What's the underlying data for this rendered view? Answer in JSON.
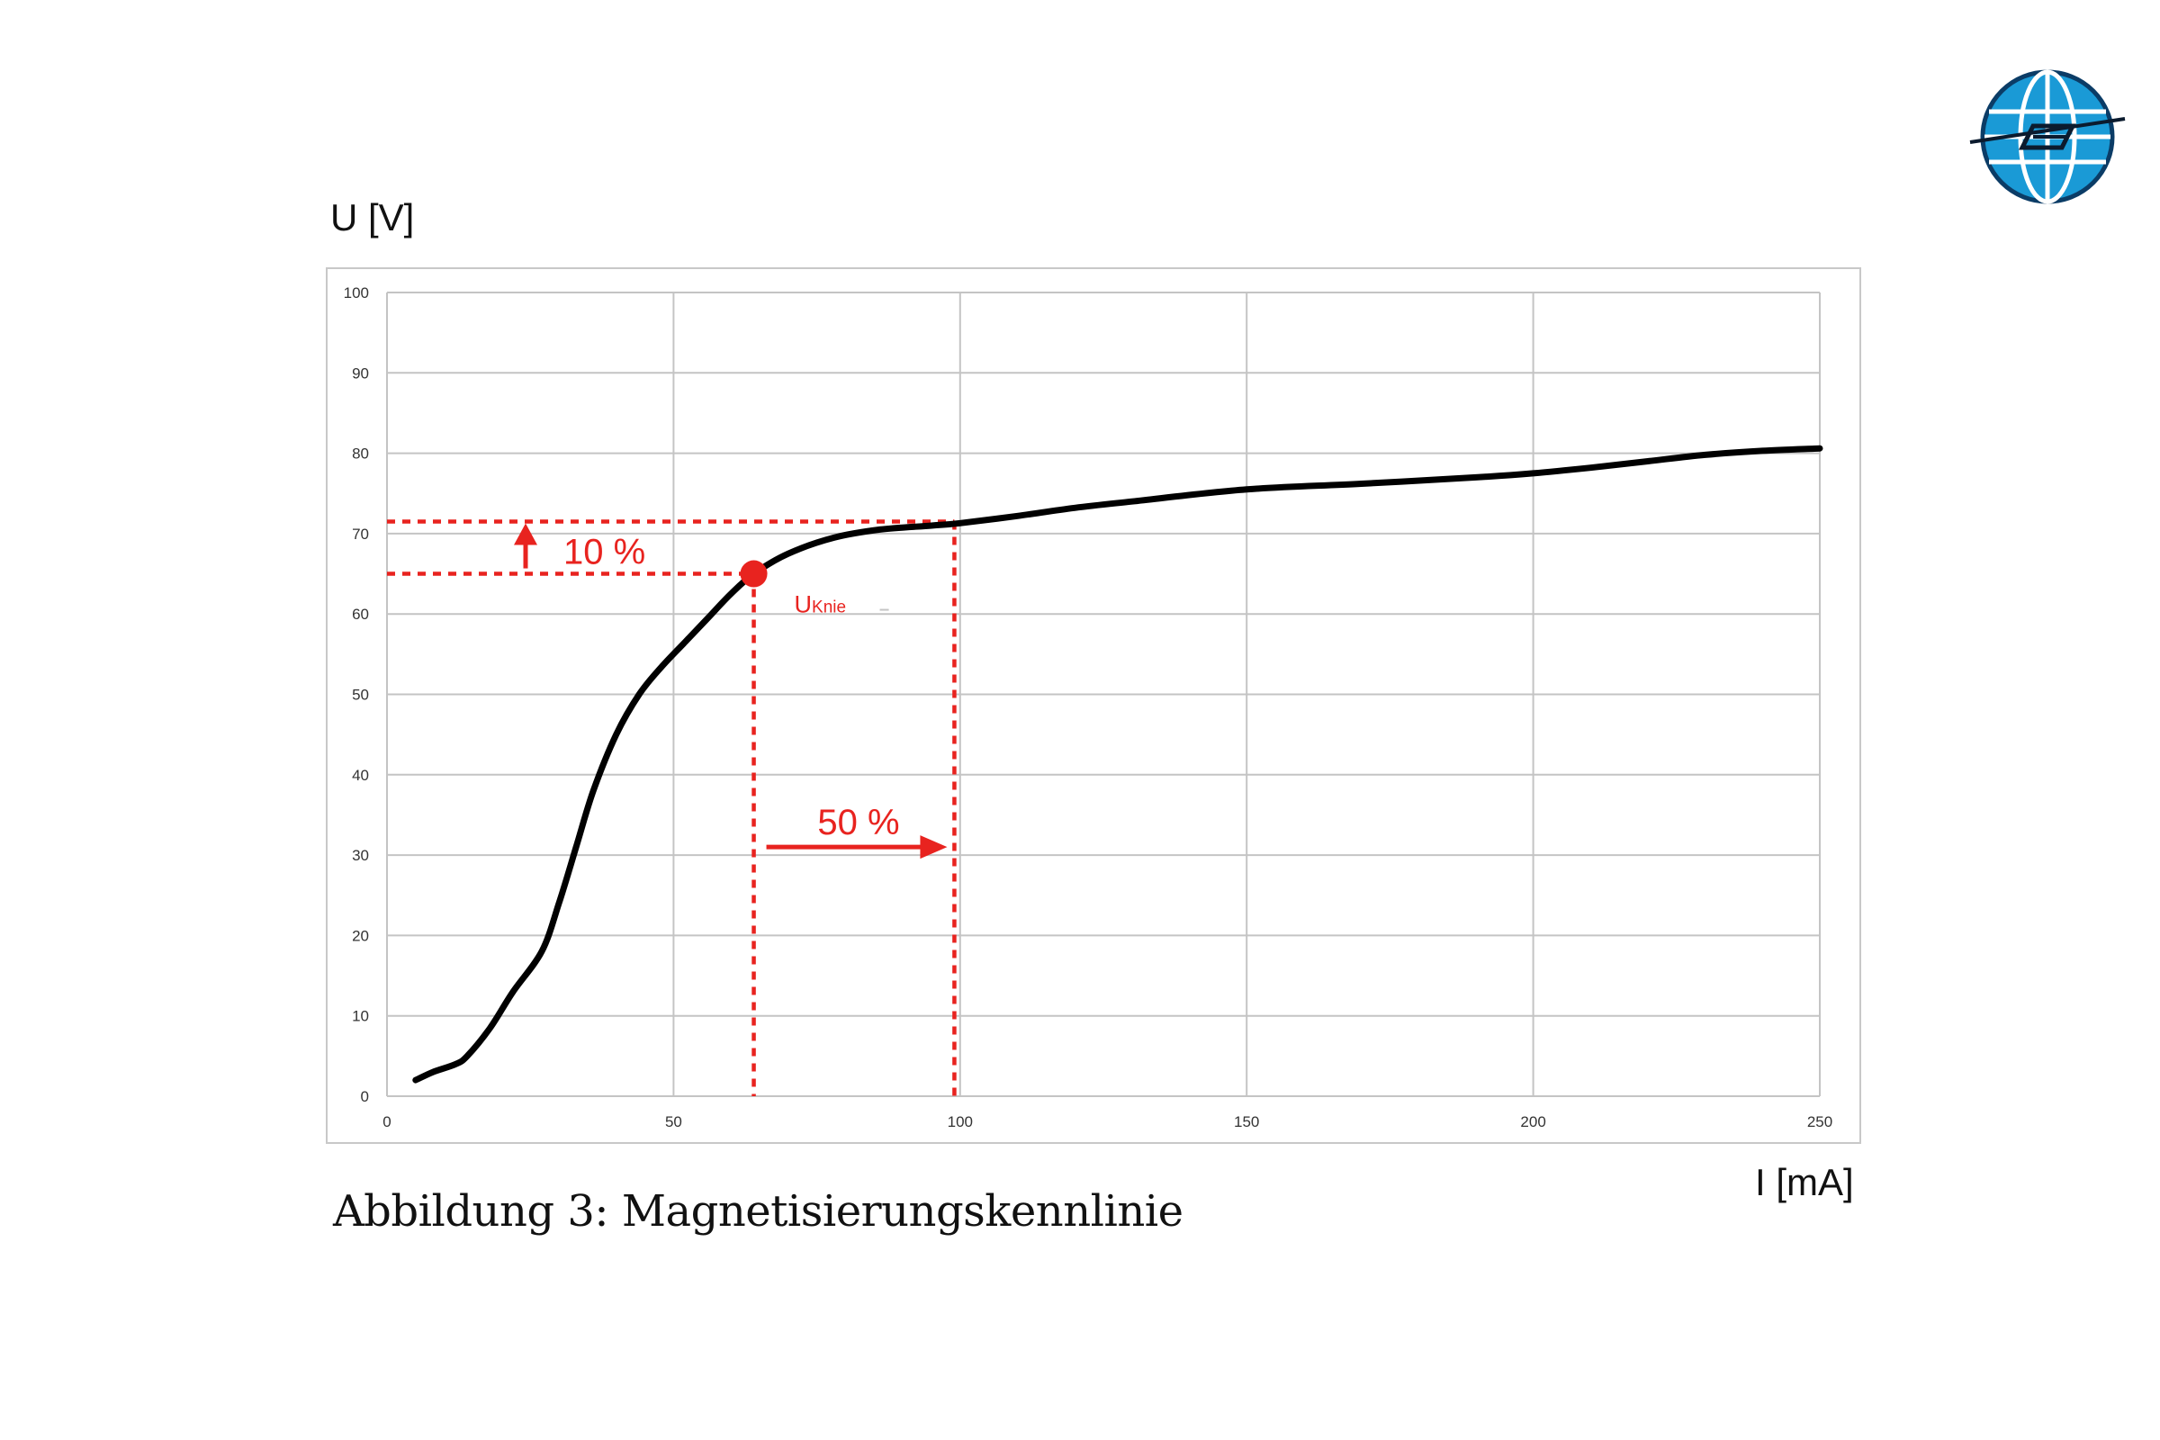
{
  "page": {
    "caption": "Abbildung 3: Magnetisierungskennlinie"
  },
  "logo": {
    "icon": "globe-logo-icon",
    "color": "#1a9ad6"
  },
  "chart_data": {
    "type": "line",
    "xlabel": "I [mA]",
    "ylabel": "U [V]",
    "xlim": [
      0,
      250
    ],
    "ylim": [
      0,
      100
    ],
    "x_ticks": [
      "0",
      "50",
      "100",
      "150",
      "200",
      "250"
    ],
    "y_ticks": [
      "0",
      "10",
      "20",
      "30",
      "40",
      "50",
      "60",
      "70",
      "80",
      "90",
      "100"
    ],
    "grid": true,
    "line_color": "#000000",
    "annotation_color": "#e8231f",
    "series": [
      {
        "x": [
          5,
          8,
          12,
          14,
          18,
          22,
          27,
          30,
          33,
          36,
          40,
          44,
          48,
          52,
          56,
          60,
          64,
          70,
          78,
          86,
          95,
          100,
          110,
          120,
          130,
          150,
          170,
          190,
          200,
          210,
          220,
          230,
          240,
          250
        ],
        "y": [
          2,
          3,
          4,
          5,
          8.5,
          13,
          18,
          24,
          31,
          38,
          45,
          50,
          53.5,
          56.5,
          59.5,
          62.5,
          65,
          67.5,
          69.5,
          70.5,
          71,
          71.3,
          72.2,
          73.2,
          74,
          75.5,
          76.2,
          77,
          77.5,
          78.2,
          79,
          79.8,
          80.3,
          80.6
        ]
      }
    ],
    "knee_point": {
      "x": 64,
      "y": 65,
      "label_main": "U",
      "label_sub": "Knie"
    },
    "reference_point": {
      "x": 99,
      "y": 71.5
    },
    "annotations": {
      "voltage_increase": "10 %",
      "current_increase": "50 %"
    }
  }
}
